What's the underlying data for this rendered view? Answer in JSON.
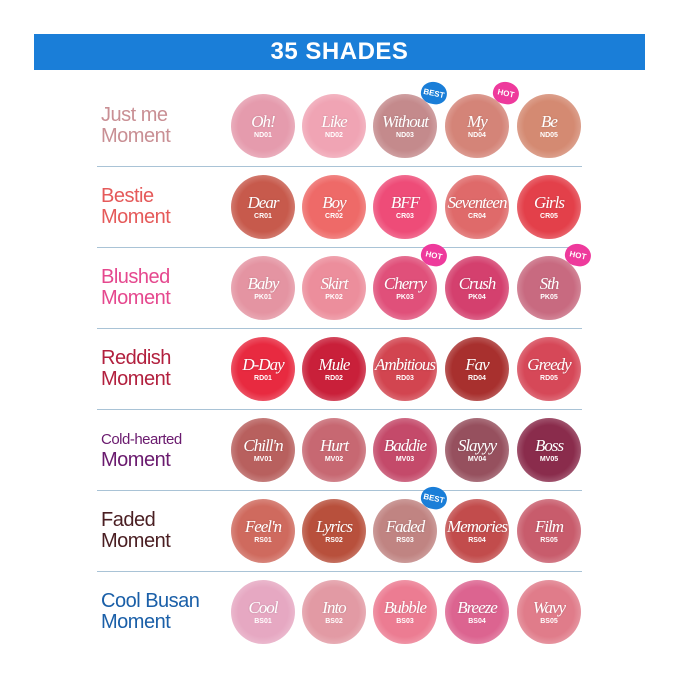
{
  "title": "35 SHADES",
  "colors": {
    "banner": "#1a7ed8",
    "best_badge": "#1a7ed8",
    "hot_badge": "#ee3a9c"
  },
  "rows": [
    {
      "line1": "Just me",
      "line2": "Moment",
      "color": "#c98f94",
      "shades": [
        {
          "name": "Oh!",
          "code": "ND01",
          "color": "#e59bad"
        },
        {
          "name": "Like",
          "code": "ND02",
          "color": "#f0a4b4"
        },
        {
          "name": "Without",
          "code": "ND03",
          "color": "#c48a8c",
          "badge": "BEST"
        },
        {
          "name": "My",
          "code": "ND04",
          "color": "#d48478",
          "badge": "HOT"
        },
        {
          "name": "Be",
          "code": "ND05",
          "color": "#d48a72"
        }
      ]
    },
    {
      "line1": "Bestie",
      "line2": "Moment",
      "color": "#e55a5a",
      "shades": [
        {
          "name": "Dear",
          "code": "CR01",
          "color": "#c75a4c"
        },
        {
          "name": "Boy",
          "code": "CR02",
          "color": "#ee6a68"
        },
        {
          "name": "BFF",
          "code": "CR03",
          "color": "#ee4c78"
        },
        {
          "name": "Seventeen",
          "code": "CR04",
          "color": "#df6a6a"
        },
        {
          "name": "Girls",
          "code": "CR05",
          "color": "#e3404a"
        }
      ]
    },
    {
      "line1": "Blushed",
      "line2": "Moment",
      "color": "#e5488e",
      "shades": [
        {
          "name": "Baby",
          "code": "PK01",
          "color": "#e494a2"
        },
        {
          "name": "Skirt",
          "code": "PK02",
          "color": "#ec8e9c"
        },
        {
          "name": "Cherry",
          "code": "PK03",
          "color": "#e0507a",
          "badge": "HOT"
        },
        {
          "name": "Crush",
          "code": "PK04",
          "color": "#d4406e"
        },
        {
          "name": "Sth",
          "code": "PK05",
          "color": "#c86a80",
          "badge": "HOT"
        }
      ]
    },
    {
      "line1": "Reddish",
      "line2": "Moment",
      "color": "#b2203e",
      "shades": [
        {
          "name": "D-Day",
          "code": "RD01",
          "color": "#e82a40"
        },
        {
          "name": "Mule",
          "code": "RD02",
          "color": "#c9203a"
        },
        {
          "name": "Ambitious",
          "code": "RD03",
          "color": "#d24550"
        },
        {
          "name": "Fav",
          "code": "RD04",
          "color": "#a8302e"
        },
        {
          "name": "Greedy",
          "code": "RD05",
          "color": "#d64858"
        }
      ]
    },
    {
      "line1": "Cold-hearted",
      "line2": "Moment",
      "color": "#6a1a6e",
      "small": true,
      "shades": [
        {
          "name": "Chill'n",
          "code": "MV01",
          "color": "#b8605e"
        },
        {
          "name": "Hurt",
          "code": "MV02",
          "color": "#c76872"
        },
        {
          "name": "Baddie",
          "code": "MV03",
          "color": "#c44a6a"
        },
        {
          "name": "Slayyy",
          "code": "MV04",
          "color": "#96505e"
        },
        {
          "name": "Boss",
          "code": "MV05",
          "color": "#8a2c4c"
        }
      ]
    },
    {
      "line1": "Faded",
      "line2": "Moment",
      "color": "#4a1e22",
      "shades": [
        {
          "name": "Feel'n",
          "code": "RS01",
          "color": "#cf6a5e"
        },
        {
          "name": "Lyrics",
          "code": "RS02",
          "color": "#b8503c"
        },
        {
          "name": "Faded",
          "code": "RS03",
          "color": "#c08482",
          "badge": "BEST"
        },
        {
          "name": "Memories",
          "code": "RS04",
          "color": "#c24c4c"
        },
        {
          "name": "Film",
          "code": "RS05",
          "color": "#c85c6c"
        }
      ]
    },
    {
      "line1": "Cool Busan",
      "line2": "Moment",
      "color": "#1a5fa8",
      "shades": [
        {
          "name": "Cool",
          "code": "BS01",
          "color": "#e6a8c2"
        },
        {
          "name": "Into",
          "code": "BS02",
          "color": "#e29aa4"
        },
        {
          "name": "Bubble",
          "code": "BS03",
          "color": "#ec7c92"
        },
        {
          "name": "Breeze",
          "code": "BS04",
          "color": "#dc6490"
        },
        {
          "name": "Wavy",
          "code": "BS05",
          "color": "#e07c8a"
        }
      ]
    }
  ]
}
